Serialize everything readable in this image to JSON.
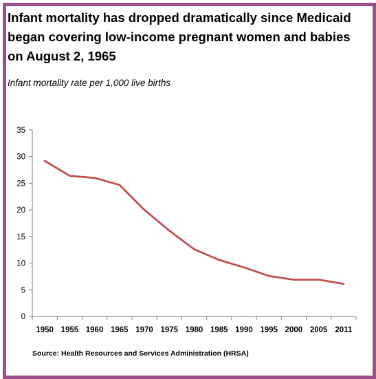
{
  "chart_data": {
    "type": "line",
    "title": "Infant mortality has dropped dramatically since Medicaid began covering low-income pregnant women and babies on August 2, 1965",
    "subtitle": "Infant mortality rate per 1,000 live births",
    "xlabel": "",
    "ylabel": "",
    "categories": [
      "1950",
      "1955",
      "1960",
      "1965",
      "1970",
      "1975",
      "1980",
      "1985",
      "1990",
      "1995",
      "2000",
      "2005",
      "2011"
    ],
    "series": [
      {
        "values": [
          29.2,
          26.4,
          26.0,
          24.7,
          20.0,
          16.1,
          12.6,
          10.6,
          9.2,
          7.6,
          6.9,
          6.9,
          6.1
        ]
      }
    ],
    "ylim": [
      0,
      35
    ],
    "yticks": [
      "0",
      "5",
      "10",
      "15",
      "20",
      "25",
      "30",
      "35"
    ],
    "grid": false,
    "legend": "none",
    "source": "Source: Health Resources and Services Administration (HRSA)",
    "colors": {
      "line": "#c0504d",
      "border": "#9b4f8b",
      "axis": "#7f7f7f"
    }
  }
}
